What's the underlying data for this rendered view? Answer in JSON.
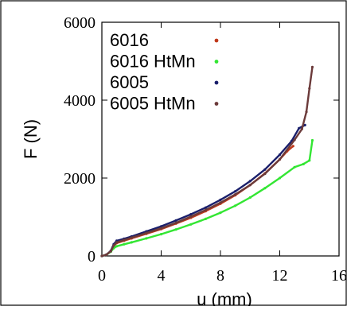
{
  "chart_data": {
    "type": "scatter",
    "xlabel": "u (mm)",
    "ylabel": "F (N)",
    "xlim": [
      0,
      16
    ],
    "ylim": [
      0,
      6000
    ],
    "xticks": [
      "0",
      "4",
      "8",
      "12",
      "16"
    ],
    "yticks": [
      "0",
      "2000",
      "4000",
      "6000"
    ],
    "xtick_values": [
      0,
      4,
      8,
      12,
      16
    ],
    "ytick_values": [
      0,
      2000,
      4000,
      6000
    ],
    "grid": false,
    "legend_position": "top-right",
    "series": [
      {
        "name": "6016",
        "color": "#c0391b",
        "x": [
          0,
          0.3,
          0.6,
          0.8,
          1.0,
          1.5,
          2,
          3,
          4,
          5,
          6,
          7,
          8,
          9,
          10,
          11,
          12,
          12.5,
          12.9
        ],
        "y": [
          0,
          30,
          120,
          260,
          330,
          390,
          450,
          570,
          690,
          830,
          980,
          1150,
          1340,
          1560,
          1820,
          2120,
          2480,
          2690,
          2820
        ]
      },
      {
        "name": "6016 HtMn",
        "color": "#33e633",
        "x": [
          0,
          0.3,
          0.6,
          0.8,
          1.0,
          1.5,
          2,
          3,
          4,
          5,
          6,
          7,
          8,
          9,
          10,
          11,
          12,
          13,
          13.6,
          14.0,
          14.2
        ],
        "y": [
          0,
          30,
          110,
          200,
          250,
          300,
          350,
          450,
          560,
          680,
          810,
          950,
          1110,
          1290,
          1500,
          1740,
          2000,
          2280,
          2360,
          2450,
          2970
        ]
      },
      {
        "name": "6005",
        "color": "#1a1f6b",
        "x": [
          0,
          0.3,
          0.6,
          0.8,
          1.0,
          1.5,
          2,
          3,
          4,
          5,
          6,
          7,
          8,
          9,
          10,
          11,
          12,
          12.8,
          13.3,
          13.7
        ],
        "y": [
          0,
          30,
          130,
          300,
          390,
          440,
          500,
          630,
          760,
          910,
          1070,
          1240,
          1440,
          1660,
          1920,
          2220,
          2600,
          2950,
          3280,
          3360
        ]
      },
      {
        "name": "6005 HtMn",
        "color": "#6b3a3a",
        "x": [
          0,
          0.3,
          0.6,
          0.8,
          1.0,
          1.5,
          2,
          3,
          4,
          5,
          6,
          7,
          8,
          9,
          10,
          11,
          12,
          13,
          13.5,
          13.8,
          14.0,
          14.2
        ],
        "y": [
          0,
          30,
          120,
          270,
          350,
          410,
          470,
          590,
          710,
          850,
          1010,
          1180,
          1370,
          1580,
          1820,
          2110,
          2480,
          2980,
          3260,
          3700,
          4300,
          4850
        ]
      }
    ]
  }
}
